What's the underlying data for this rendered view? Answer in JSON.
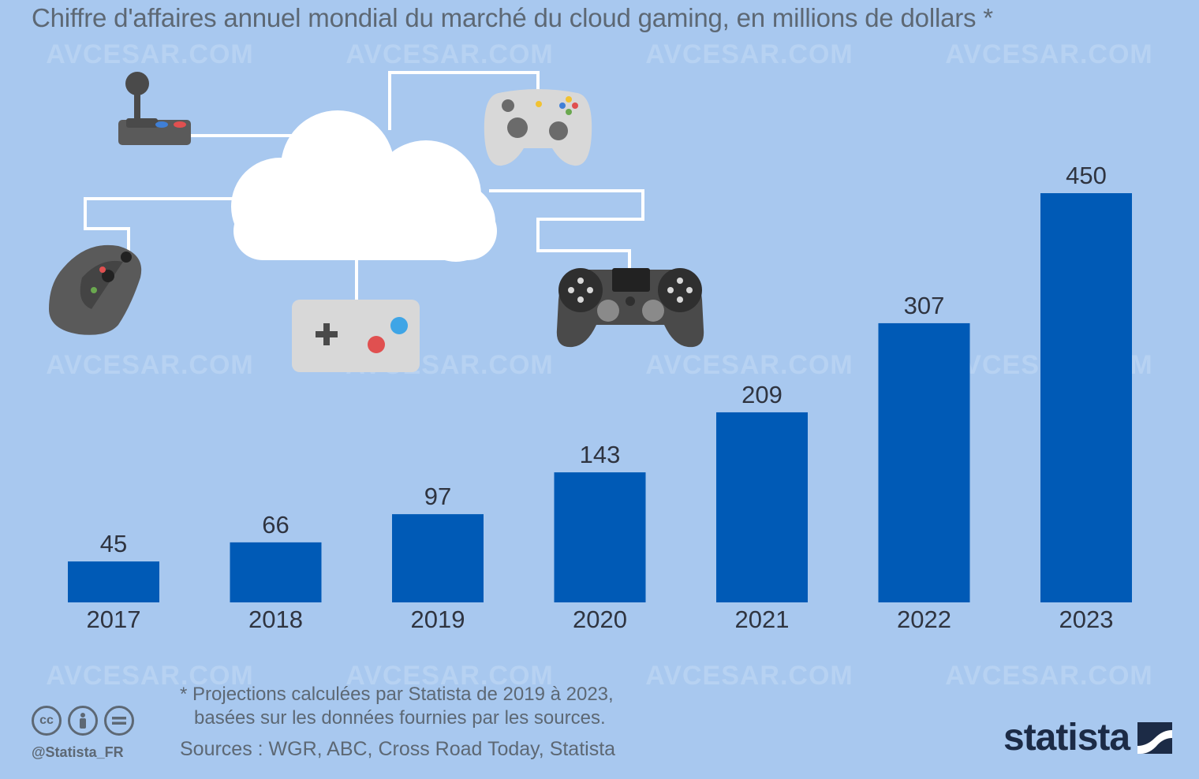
{
  "subtitle": "Chiffre d'affaires annuel mondial du marché du cloud gaming, en millions de dollars *",
  "watermark": "AVCESAR.COM",
  "chart_data": {
    "type": "bar",
    "categories": [
      "2017",
      "2018",
      "2019",
      "2020",
      "2021",
      "2022",
      "2023"
    ],
    "values": [
      45,
      66,
      97,
      143,
      209,
      307,
      450
    ],
    "title": "",
    "subtitle": "Chiffre d'affaires annuel mondial du marché du cloud gaming, en millions de dollars *",
    "xlabel": "",
    "ylabel": "",
    "ylim": [
      0,
      450
    ],
    "bar_color": "#005ab6",
    "grid": false,
    "legend": "none"
  },
  "footnote": {
    "line1": "* Projections calculées par Statista de 2019 à 2023,",
    "line2": "basées sur les données fournies par les sources."
  },
  "sources": "Sources : WGR, ABC, Cross Road Today, Statista",
  "license": {
    "icons": [
      "cc-icon",
      "by-icon",
      "nd-icon"
    ],
    "handle": "@Statista_FR"
  },
  "brand": {
    "name": "statista"
  },
  "illustration": {
    "icons": [
      "cloud-icon",
      "joystick-icon",
      "xbox-controller-icon",
      "playstation-controller-icon",
      "snes-controller-icon",
      "wii-remote-icon"
    ]
  },
  "colors": {
    "background": "#a8c8ef",
    "bar": "#005ab6",
    "text": "#2f3440",
    "muted": "#5d6874"
  }
}
